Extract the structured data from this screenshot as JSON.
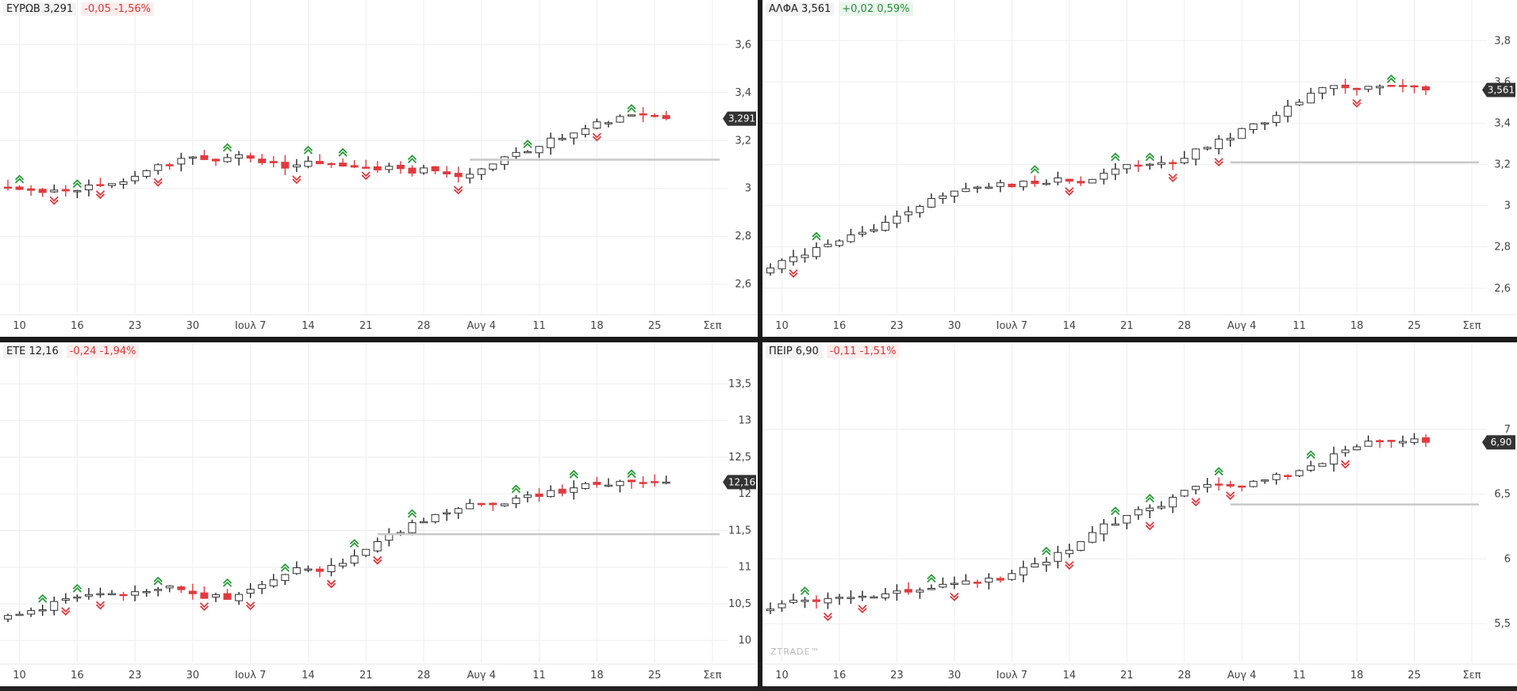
{
  "colors": {
    "up": "#ffffff",
    "down": "#e03a3e",
    "neutral": "#555555",
    "grid": "#eeeeee",
    "axis_text": "#444444",
    "pos": "#2a8a3a",
    "neg": "#d33333",
    "signal_up": "#2a9a3a",
    "signal_down": "#e03a3e",
    "support": "#c8c8c8"
  },
  "watermark": "ZTRADE™",
  "panels": [
    {
      "name": "eurob",
      "symbol": "ΕΥΡΩΒ 3,291",
      "change": "-0,05 -1,56%",
      "direction": "down",
      "price_tag": "3,291",
      "ylim": [
        2.48,
        3.72
      ],
      "yticks": [
        2.6,
        2.8,
        3.0,
        3.2,
        3.4,
        3.6
      ],
      "ytick_labels": [
        "2,6",
        "2,8",
        "3",
        "3,2",
        "3,4",
        "3,6"
      ],
      "start": 3.0,
      "final": 3.291,
      "support": 3.12,
      "support_from": 40,
      "ups": [
        1,
        6,
        19,
        26,
        29,
        35,
        45,
        54
      ],
      "downs": [
        4,
        8,
        13,
        25,
        31,
        39,
        51
      ]
    },
    {
      "name": "alfa",
      "symbol": "ΑΛΦΑ 3,561",
      "change": "+0,02 0,59%",
      "direction": "up",
      "price_tag": "3,561",
      "ylim": [
        2.48,
        3.92
      ],
      "yticks": [
        2.6,
        2.8,
        3.0,
        3.2,
        3.4,
        3.6,
        3.8
      ],
      "ytick_labels": [
        "2,6",
        "2,8",
        "3",
        "3,2",
        "3,4",
        "3,6",
        "3,8"
      ],
      "start": 2.68,
      "final": 3.561,
      "support": 3.21,
      "support_from": 40,
      "ups": [
        4,
        23,
        30,
        33,
        54
      ],
      "downs": [
        2,
        26,
        35,
        39,
        51
      ]
    },
    {
      "name": "ete",
      "symbol": "ΕΤΕ 12,16",
      "change": "-0,24 -1,94%",
      "direction": "down",
      "price_tag": "12,16",
      "ylim": [
        9.7,
        13.85
      ],
      "yticks": [
        10,
        10.5,
        11,
        11.5,
        12,
        12.5,
        13,
        13.5
      ],
      "ytick_labels": [
        "10",
        "10,5",
        "11",
        "11,5",
        "12",
        "12,5",
        "13",
        "13,5"
      ],
      "start": 10.3,
      "final": 12.16,
      "support": 11.45,
      "support_from": 32,
      "ups": [
        3,
        6,
        13,
        19,
        24,
        30,
        35,
        44,
        49,
        54
      ],
      "downs": [
        5,
        8,
        17,
        21,
        28,
        32
      ]
    },
    {
      "name": "peir",
      "symbol": "ΠΕΙΡ 6,90",
      "change": "-0,11 -1,51%",
      "direction": "down",
      "price_tag": "6,90",
      "ylim": [
        5.2,
        7.55
      ],
      "yticks": [
        5.5,
        6.0,
        6.5,
        7.0
      ],
      "ytick_labels": [
        "5,5",
        "6",
        "6,5",
        "7"
      ],
      "start": 5.6,
      "final": 6.9,
      "support": 6.42,
      "support_from": 40,
      "ups": [
        3,
        14,
        24,
        30,
        33,
        39,
        47
      ],
      "downs": [
        5,
        8,
        16,
        26,
        33,
        37,
        40,
        50
      ]
    }
  ],
  "x_axis": {
    "labels": [
      "10",
      "16",
      "23",
      "30",
      "Ιουλ 7",
      "14",
      "21",
      "28",
      "Αυγ 4",
      "11",
      "18",
      "25",
      "Σεπ"
    ],
    "label_index": [
      1,
      6,
      11,
      16,
      21,
      26,
      31,
      36,
      41,
      46,
      51,
      56,
      61
    ]
  }
}
